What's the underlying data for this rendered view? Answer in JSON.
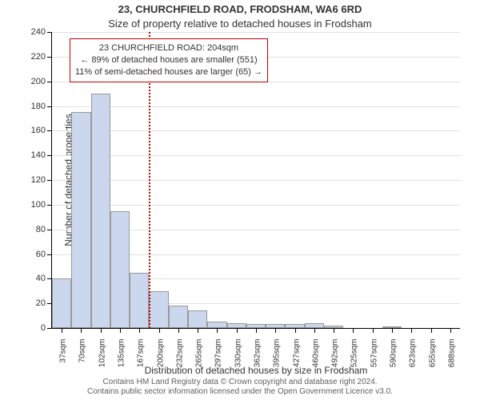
{
  "titles": {
    "line1": "23, CHURCHFIELD ROAD, FRODSHAM, WA6 6RD",
    "line2": "Size of property relative to detached houses in Frodsham"
  },
  "y_axis": {
    "title": "Number of detached properties",
    "min": 0,
    "max": 240,
    "step": 20,
    "ticks": [
      0,
      20,
      40,
      60,
      80,
      100,
      120,
      140,
      160,
      180,
      200,
      220,
      240
    ]
  },
  "x_axis": {
    "title": "Distribution of detached houses by size in Frodsham",
    "labels": [
      "37sqm",
      "70sqm",
      "102sqm",
      "135sqm",
      "167sqm",
      "200sqm",
      "232sqm",
      "265sqm",
      "297sqm",
      "330sqm",
      "362sqm",
      "395sqm",
      "427sqm",
      "460sqm",
      "492sqm",
      "525sqm",
      "557sqm",
      "590sqm",
      "623sqm",
      "655sqm",
      "688sqm"
    ]
  },
  "chart": {
    "type": "bar_histogram",
    "bars": [
      40,
      175,
      190,
      95,
      45,
      30,
      18,
      14,
      5,
      4,
      3,
      3,
      3,
      4,
      2,
      0,
      0,
      1,
      0,
      0,
      0
    ],
    "bar_fill": "#cad7ec",
    "bar_stroke": "#999999",
    "bar_relative_width": 1.0,
    "background": "#ffffff",
    "grid_color": "#e0e0e0",
    "highlight_bar_index": 5,
    "highlight_color": "#c00000"
  },
  "annotation": {
    "line1": "23 CHURCHFIELD ROAD: 204sqm",
    "line2": "← 89% of detached houses are smaller (551)",
    "line3": "11% of semi-detached houses are larger (65) →",
    "border_color": "#c00000"
  },
  "footer": {
    "line1": "Contains HM Land Registry data © Crown copyright and database right 2024.",
    "line2": "Contains public sector information licensed under the Open Government Licence v3.0."
  },
  "fonts": {
    "title_fontsize": 13,
    "axis_label_fontsize": 12,
    "tick_fontsize": 11,
    "annotation_fontsize": 11,
    "footer_fontsize": 10
  }
}
